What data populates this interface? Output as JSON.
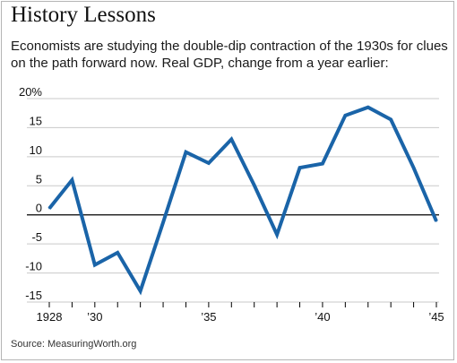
{
  "title": "History Lessons",
  "subtitle": "Economists are studying the double-dip contraction of the 1930s for clues on the path forward now.  Real GDP, change from a year earlier:",
  "source": "Source: MeasuringWorth.org",
  "colors": {
    "line": "#1a64a8",
    "grid": "#c9c9c9",
    "zero": "#000000",
    "text": "#111111"
  },
  "chart_data": {
    "type": "line",
    "title": "History Lessons",
    "x": [
      1928,
      1929,
      1930,
      1931,
      1932,
      1933,
      1934,
      1935,
      1936,
      1937,
      1938,
      1939,
      1940,
      1941,
      1942,
      1943,
      1944,
      1945
    ],
    "series": [
      {
        "values": [
          1.1,
          6.0,
          -8.6,
          -6.5,
          -13.1,
          -1.3,
          10.8,
          8.9,
          13.0,
          5.1,
          -3.4,
          8.1,
          8.8,
          17.1,
          18.5,
          16.4,
          8.1,
          -1.1
        ]
      }
    ],
    "ylim": [
      -15,
      20
    ],
    "xlim": [
      1928,
      1945
    ],
    "y_ticks": [
      20,
      15,
      10,
      5,
      0,
      -5,
      -10,
      -15
    ],
    "y_tick_labels": [
      "20%",
      "15",
      "10",
      "5",
      "0",
      "-5",
      "-10",
      "-15"
    ],
    "x_tick_labels": [
      {
        "x": 1928,
        "label": "1928"
      },
      {
        "x": 1930,
        "label": "’30"
      },
      {
        "x": 1935,
        "label": "’35"
      },
      {
        "x": 1940,
        "label": "’40"
      },
      {
        "x": 1945,
        "label": "’45"
      }
    ],
    "grid": true,
    "xlabel": "",
    "ylabel": ""
  }
}
